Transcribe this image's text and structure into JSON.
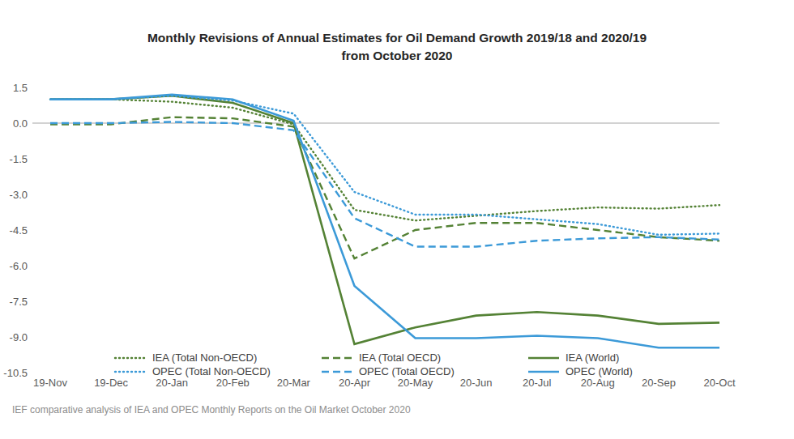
{
  "chart_data": {
    "type": "line",
    "title": "Monthly Revisions of Annual Estimates for Oil Demand Growth 2019/18 and 2020/19\nfrom October 2020",
    "caption": "IEF comparative analysis of IEA and OPEC Monthly Reports on the Oil Market October 2020",
    "categories": [
      "19-Nov",
      "19-Dec",
      "20-Jan",
      "20-Feb",
      "20-Mar",
      "20-Apr",
      "20-May",
      "20-Jun",
      "20-Jul",
      "20-Aug",
      "20-Sep",
      "20-Oct"
    ],
    "ylim": [
      -10.5,
      1.5
    ],
    "yticks": [
      1.5,
      {
        "value": 0,
        "label": "0.0"
      },
      -1.5,
      {
        "value": -3,
        "label": "-3.0"
      },
      -4.5,
      {
        "value": -6,
        "label": "-6.0"
      },
      -7.5,
      {
        "value": -9,
        "label": "-9.0"
      },
      -10.5
    ],
    "grid": false,
    "legend": "bottom",
    "series": [
      {
        "name": "IEA (Total Non-OECD)",
        "color": "#548235",
        "line_style": "dotted",
        "values": [
          1.0,
          1.0,
          0.9,
          0.65,
          -0.05,
          -3.65,
          -4.1,
          -3.9,
          -3.7,
          -3.55,
          -3.6,
          -3.45
        ]
      },
      {
        "name": "IEA (Total OECD)",
        "color": "#548235",
        "line_style": "dashed",
        "values": [
          -0.05,
          -0.05,
          0.25,
          0.2,
          -0.15,
          -5.7,
          -4.5,
          -4.2,
          -4.2,
          -4.5,
          -4.8,
          -4.95
        ]
      },
      {
        "name": "IEA (World)",
        "color": "#548235",
        "line_style": "solid",
        "values": [
          1.0,
          1.0,
          1.15,
          0.85,
          0.0,
          -9.3,
          -8.6,
          -8.1,
          -7.95,
          -8.1,
          -8.45,
          -8.4
        ]
      },
      {
        "name": "OPEC (Total Non-OECD)",
        "color": "#3C9AD8",
        "line_style": "dotted",
        "values": [
          1.0,
          1.0,
          1.15,
          0.95,
          0.4,
          -2.9,
          -3.85,
          -3.85,
          -4.05,
          -4.25,
          -4.7,
          -4.65
        ]
      },
      {
        "name": "OPEC (Total OECD)",
        "color": "#3C9AD8",
        "line_style": "dashed",
        "values": [
          0.0,
          0.0,
          0.05,
          0.0,
          -0.3,
          -4.0,
          -5.2,
          -5.2,
          -4.95,
          -4.85,
          -4.8,
          -4.9
        ]
      },
      {
        "name": "OPEC (World)",
        "color": "#3C9AD8",
        "line_style": "solid",
        "values": [
          1.0,
          1.0,
          1.2,
          1.0,
          0.1,
          -6.85,
          -9.05,
          -9.05,
          -8.95,
          -9.05,
          -9.45,
          -9.45
        ]
      }
    ]
  }
}
